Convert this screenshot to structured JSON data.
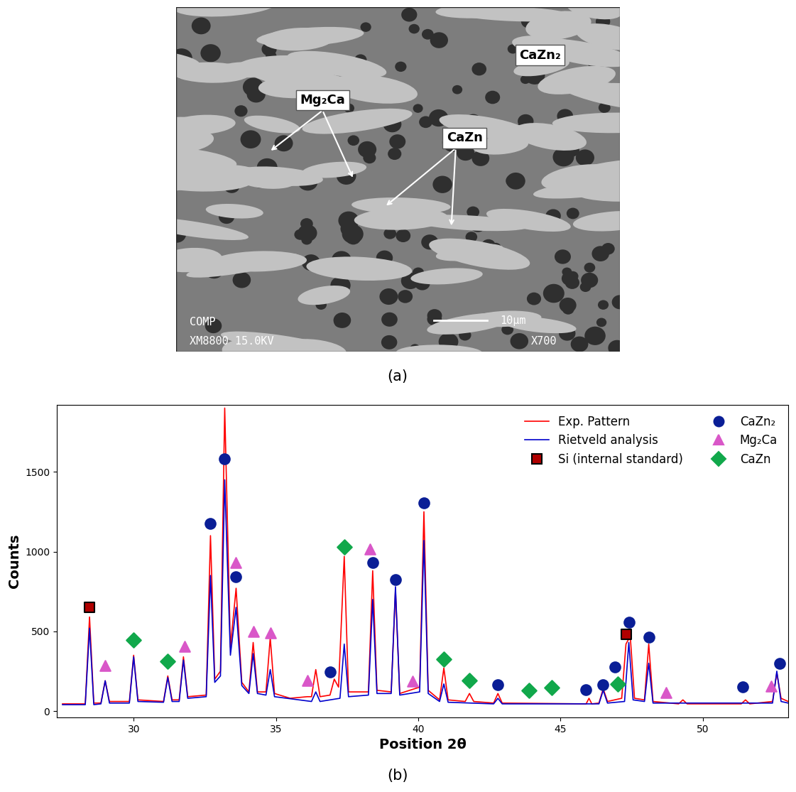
{
  "micrograph": {
    "caption": "(a)",
    "labels": [
      "CaZn₂",
      "Mg₂Ca",
      "CaZn"
    ],
    "footer": [
      "COMP",
      "XM8800 15.0KV",
      "X700"
    ],
    "scale_bar": "10μm"
  },
  "chart_data": {
    "type": "line",
    "caption": "(b)",
    "x_label": "Position 2θ",
    "y_label": "Counts",
    "xlim": [
      27.3,
      53.0
    ],
    "ylim": [
      -40,
      1920
    ],
    "xticks": [
      30,
      35,
      40,
      45,
      50
    ],
    "yticks": [
      0,
      500,
      1000,
      1500
    ],
    "legend": "upper right",
    "grid": false,
    "series": [
      {
        "name": "Exp. Pattern",
        "type": "line",
        "color": "#ff0000",
        "line_style": "solid",
        "x": [
          27.5,
          28.3,
          28.45,
          28.6,
          28.85,
          29.0,
          29.15,
          29.85,
          30.0,
          30.15,
          31.05,
          31.2,
          31.35,
          31.6,
          31.75,
          31.9,
          32.55,
          32.7,
          32.85,
          33.05,
          33.2,
          33.4,
          33.6,
          33.8,
          34.05,
          34.2,
          34.35,
          34.65,
          34.8,
          34.95,
          35.5,
          36.1,
          36.25,
          36.4,
          36.55,
          36.9,
          37.05,
          37.2,
          37.4,
          37.55,
          38.25,
          38.4,
          38.55,
          39.05,
          39.2,
          39.35,
          40.05,
          40.2,
          40.35,
          40.75,
          40.9,
          41.05,
          41.65,
          41.8,
          41.95,
          42.65,
          42.8,
          42.95,
          45.9,
          46.0,
          46.1,
          46.35,
          46.5,
          46.65,
          47.15,
          47.3,
          47.45,
          47.6,
          47.95,
          48.1,
          48.25,
          49.15,
          49.3,
          49.45,
          51.35,
          51.5,
          51.65,
          52.45,
          52.6,
          52.75,
          53.0
        ],
        "values": [
          45,
          45,
          590,
          50,
          50,
          190,
          60,
          60,
          350,
          70,
          60,
          220,
          70,
          70,
          340,
          90,
          100,
          1100,
          200,
          250,
          1900,
          400,
          770,
          180,
          120,
          430,
          120,
          120,
          460,
          110,
          80,
          90,
          90,
          260,
          90,
          100,
          200,
          150,
          970,
          120,
          120,
          880,
          130,
          120,
          760,
          110,
          150,
          1250,
          130,
          70,
          270,
          70,
          60,
          110,
          60,
          50,
          110,
          50,
          45,
          80,
          45,
          50,
          140,
          60,
          80,
          420,
          470,
          80,
          70,
          420,
          60,
          45,
          70,
          45,
          45,
          70,
          45,
          60,
          240,
          80,
          60
        ]
      },
      {
        "name": "Rietveld analysis",
        "type": "line",
        "color": "#0000cc",
        "line_style": "solid",
        "x": [
          27.5,
          28.3,
          28.45,
          28.6,
          28.85,
          29.0,
          29.15,
          29.85,
          30.0,
          30.15,
          31.05,
          31.2,
          31.35,
          31.6,
          31.75,
          31.9,
          32.55,
          32.7,
          32.85,
          33.05,
          33.2,
          33.4,
          33.6,
          33.8,
          34.05,
          34.2,
          34.35,
          34.65,
          34.8,
          34.95,
          36.25,
          36.4,
          36.55,
          37.25,
          37.4,
          37.55,
          38.25,
          38.4,
          38.55,
          39.05,
          39.2,
          39.35,
          40.05,
          40.2,
          40.35,
          40.75,
          40.9,
          41.05,
          42.65,
          42.8,
          42.95,
          46.35,
          46.5,
          46.65,
          47.25,
          47.4,
          47.55,
          47.95,
          48.1,
          48.25,
          52.45,
          52.6,
          52.75,
          53.0
        ],
        "values": [
          40,
          40,
          520,
          40,
          45,
          190,
          50,
          50,
          340,
          60,
          55,
          210,
          60,
          60,
          320,
          80,
          90,
          850,
          180,
          220,
          1450,
          350,
          650,
          160,
          110,
          360,
          110,
          100,
          260,
          90,
          60,
          120,
          60,
          80,
          420,
          90,
          100,
          700,
          110,
          110,
          780,
          100,
          120,
          1070,
          110,
          60,
          170,
          55,
          45,
          80,
          45,
          45,
          130,
          50,
          60,
          430,
          70,
          60,
          300,
          50,
          50,
          250,
          60,
          50
        ]
      },
      {
        "name": "Si (internal standard)",
        "type": "scatter",
        "color": "#1a1a1a",
        "marker": "square",
        "x": [
          28.45,
          47.3
        ],
        "values": [
          650,
          480
        ]
      },
      {
        "name": "CaZn₂",
        "type": "scatter",
        "color": "#0a1e96",
        "marker": "circle",
        "x": [
          32.7,
          33.2,
          33.6,
          36.9,
          38.4,
          39.2,
          40.2,
          42.8,
          45.9,
          46.5,
          46.9,
          47.4,
          48.1,
          51.4,
          52.7
        ],
        "values": [
          1175,
          1580,
          840,
          245,
          930,
          825,
          1305,
          165,
          135,
          165,
          275,
          555,
          465,
          150,
          300
        ]
      },
      {
        "name": "Mg₂Ca",
        "type": "scatter",
        "color": "#d957c8",
        "marker": "triangle",
        "x": [
          29.0,
          31.8,
          33.6,
          34.2,
          34.8,
          36.1,
          38.3,
          39.8,
          48.7,
          52.4
        ],
        "values": [
          285,
          405,
          930,
          500,
          490,
          190,
          1015,
          185,
          115,
          155
        ]
      },
      {
        "name": "CaZn",
        "type": "scatter",
        "color": "#11a84b",
        "marker": "diamond",
        "x": [
          30.0,
          31.2,
          37.4,
          40.9,
          41.8,
          43.9,
          44.7,
          47.0
        ],
        "values": [
          445,
          310,
          1030,
          325,
          190,
          130,
          145,
          170
        ]
      }
    ]
  }
}
